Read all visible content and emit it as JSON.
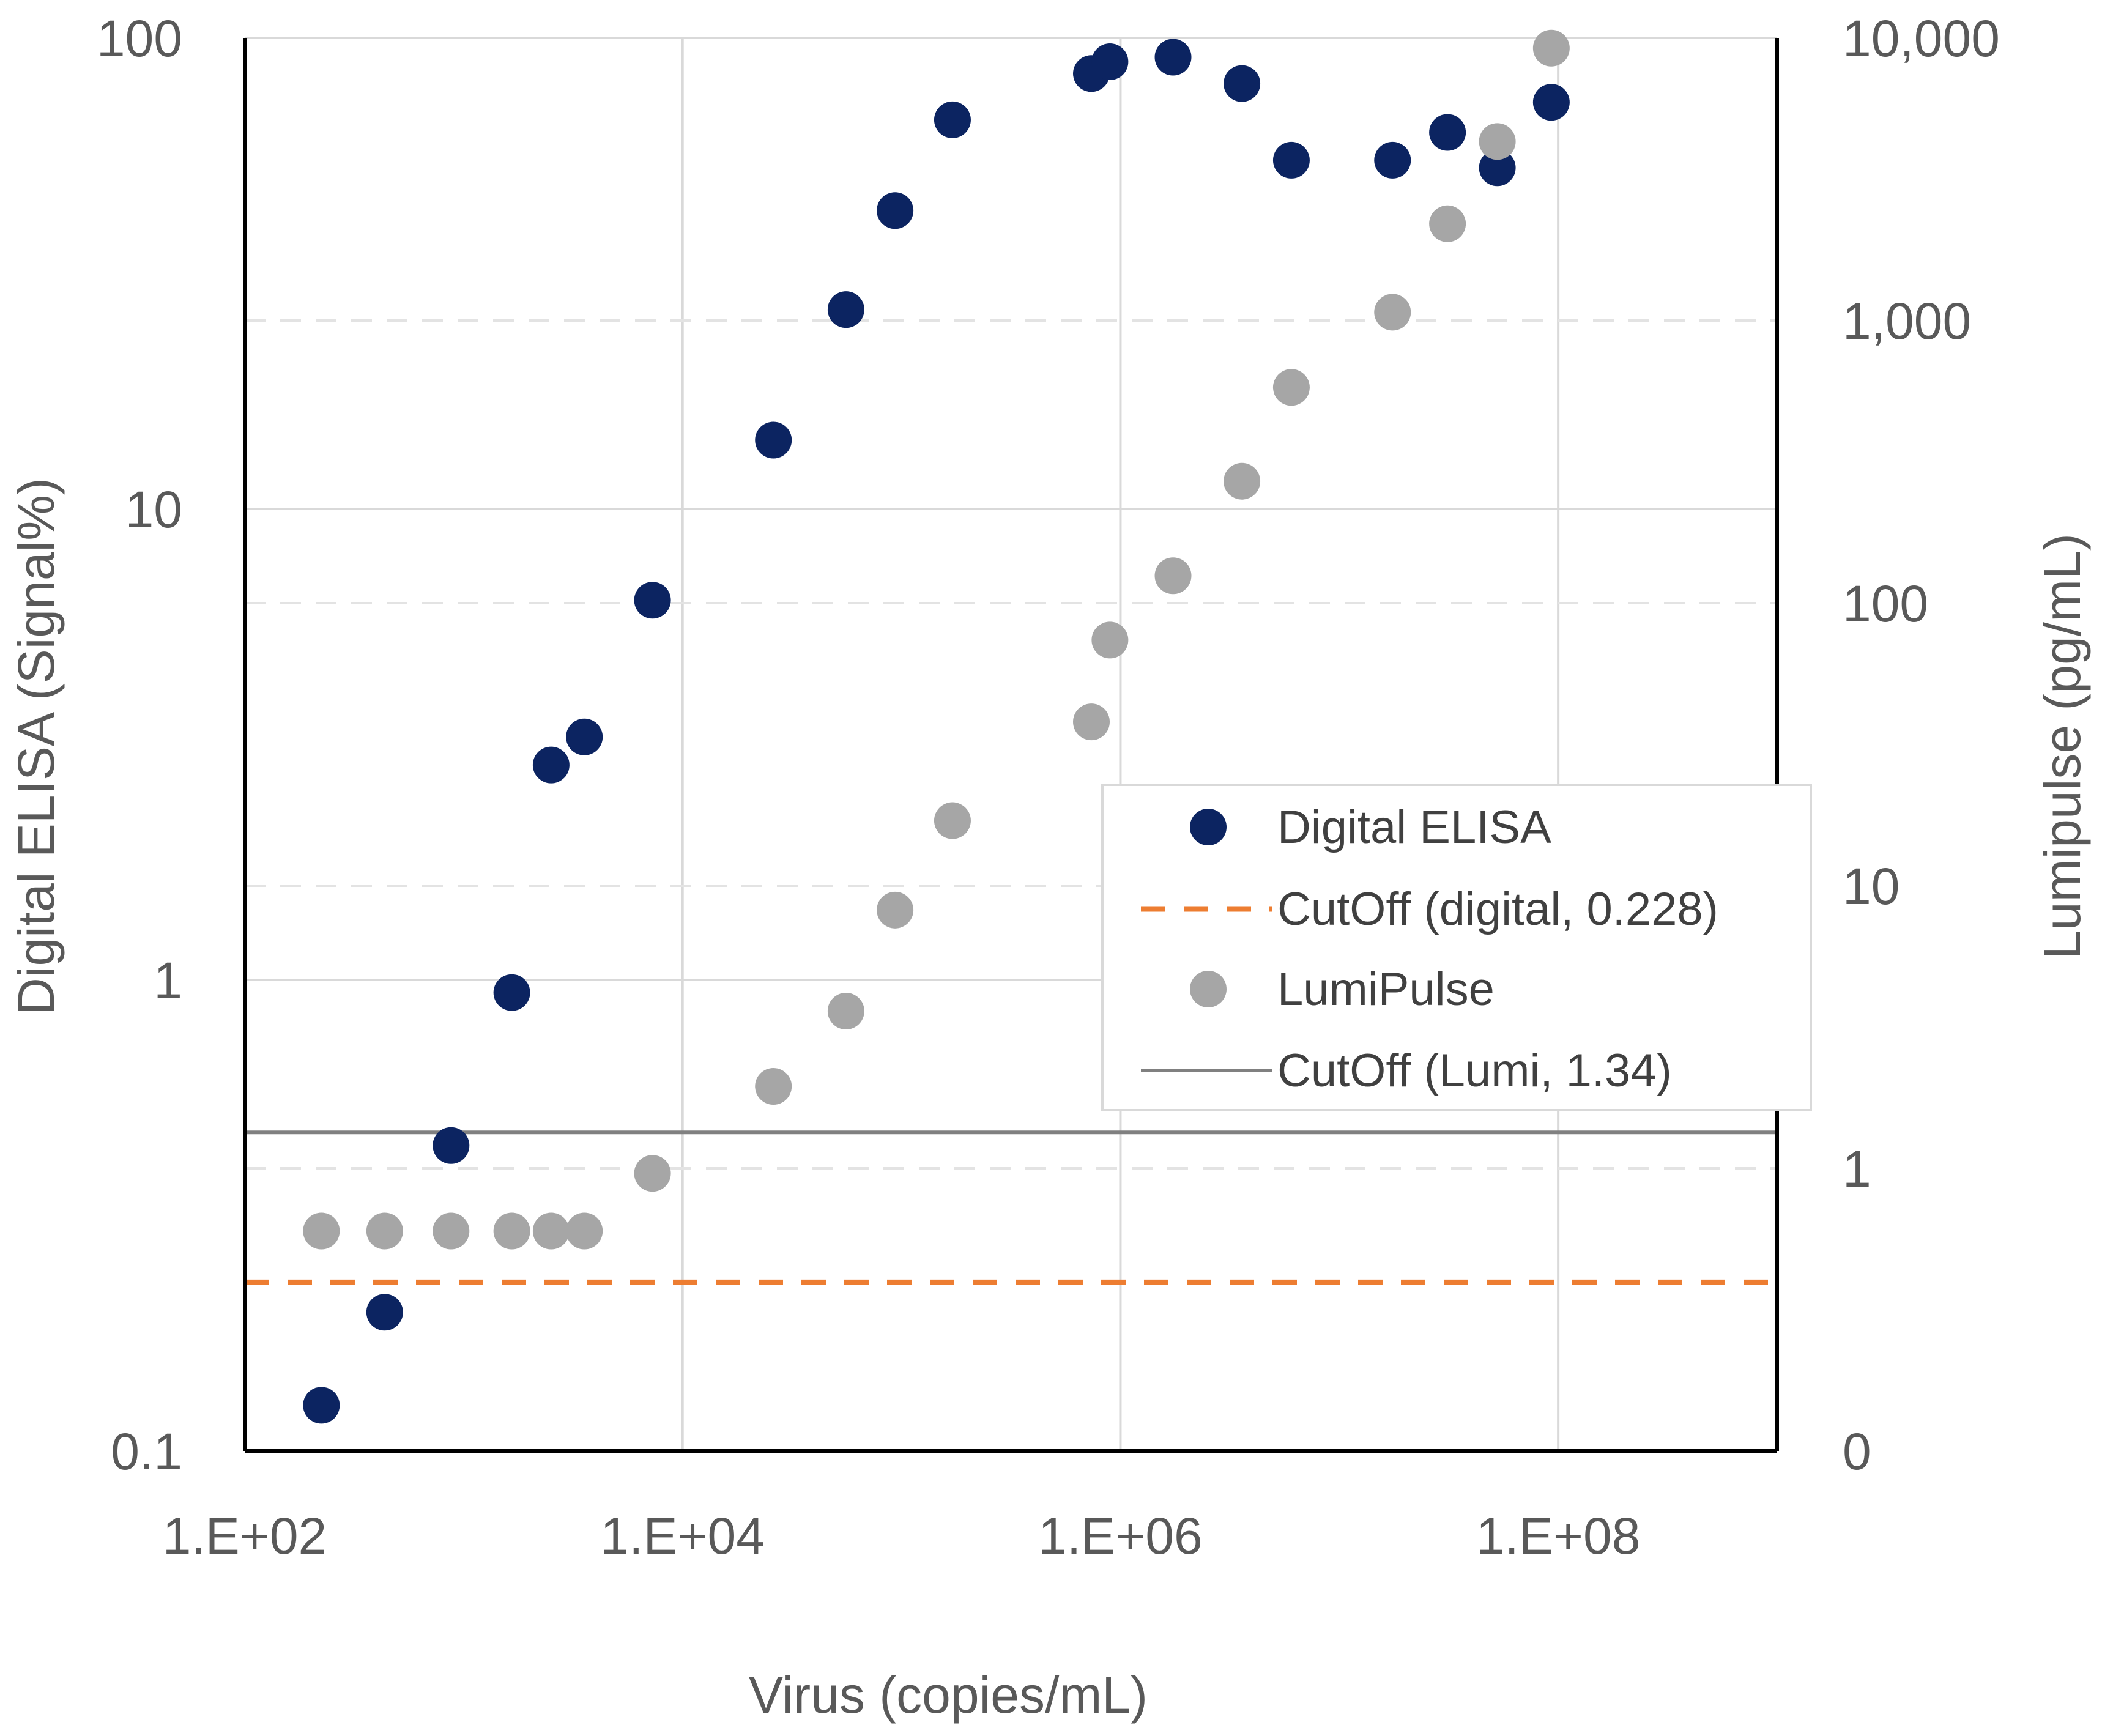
{
  "chart_data": {
    "type": "scatter",
    "xlabel": "Virus (copies/mL)",
    "ylabel_left": "Digital ELISA (Signal%)",
    "ylabel_right": "Lumipulse (pg/mL)",
    "x_scale": "log",
    "xlim": [
      100,
      1000000000
    ],
    "x_ticks": [
      {
        "value": 100,
        "label": "1.E+02"
      },
      {
        "value": 10000,
        "label": "1.E+04"
      },
      {
        "value": 1000000,
        "label": "1.E+06"
      },
      {
        "value": 100000000,
        "label": "1.E+08"
      }
    ],
    "y_left": {
      "scale": "log",
      "lim": [
        0.1,
        100
      ],
      "ticks": [
        {
          "value": 0.1,
          "label": "0.1"
        },
        {
          "value": 1,
          "label": "1"
        },
        {
          "value": 10,
          "label": "10"
        },
        {
          "value": 100,
          "label": "100"
        }
      ]
    },
    "y_right": {
      "scale": "log",
      "lim": [
        0.1,
        10000
      ],
      "ticks": [
        {
          "value": 0.1,
          "label": "0"
        },
        {
          "value": 1,
          "label": "1"
        },
        {
          "value": 10,
          "label": "10"
        },
        {
          "value": 100,
          "label": "100"
        },
        {
          "value": 1000,
          "label": "1,000"
        },
        {
          "value": 10000,
          "label": "10,000"
        }
      ]
    },
    "series": [
      {
        "name": "Digital ELISA",
        "axis": "left",
        "kind": "marker",
        "color": "#0c2461",
        "points": [
          [
            224,
            0.125
          ],
          [
            436,
            0.197
          ],
          [
            876,
            0.445
          ],
          [
            1660,
            0.94
          ],
          [
            2510,
            2.86
          ],
          [
            3560,
            3.28
          ],
          [
            7290,
            6.4
          ],
          [
            26000,
            14.0
          ],
          [
            55800,
            26.5
          ],
          [
            93500,
            43.0
          ],
          [
            171000,
            67.0
          ],
          [
            737000,
            84.0
          ],
          [
            896000,
            89.0
          ],
          [
            1740000,
            91.0
          ],
          [
            3590000,
            80.0
          ],
          [
            6040000,
            55.0
          ],
          [
            17500000,
            55.0
          ],
          [
            31200000,
            63.0
          ],
          [
            52700000,
            53.0
          ],
          [
            93000000,
            73.0
          ]
        ]
      },
      {
        "name": "CutOff (digital, 0.228)",
        "axis": "left",
        "kind": "hline",
        "value": 0.228,
        "color": "#ed7d31",
        "dash": true
      },
      {
        "name": "LumiPulse",
        "axis": "right",
        "kind": "marker",
        "color": "#a6a6a6",
        "points": [
          [
            224,
            0.6
          ],
          [
            436,
            0.6
          ],
          [
            876,
            0.6
          ],
          [
            1660,
            0.6
          ],
          [
            2510,
            0.6
          ],
          [
            3560,
            0.6
          ],
          [
            7290,
            0.96
          ],
          [
            26000,
            1.95
          ],
          [
            55800,
            3.6
          ],
          [
            93500,
            8.2
          ],
          [
            171000,
            17.0
          ],
          [
            737000,
            38.0
          ],
          [
            896000,
            74.0
          ],
          [
            1740000,
            125.0
          ],
          [
            3590000,
            270.0
          ],
          [
            6040000,
            580.0
          ],
          [
            17500000,
            1070.0
          ],
          [
            31200000,
            2200.0
          ],
          [
            52700000,
            4300.0
          ],
          [
            93000000,
            9200.0
          ]
        ]
      },
      {
        "name": "CutOff (Lumi, 1.34)",
        "axis": "right",
        "kind": "hline",
        "value": 1.34,
        "color": "#808080",
        "dash": false
      }
    ],
    "grid": true,
    "legend_position": "center-right"
  }
}
